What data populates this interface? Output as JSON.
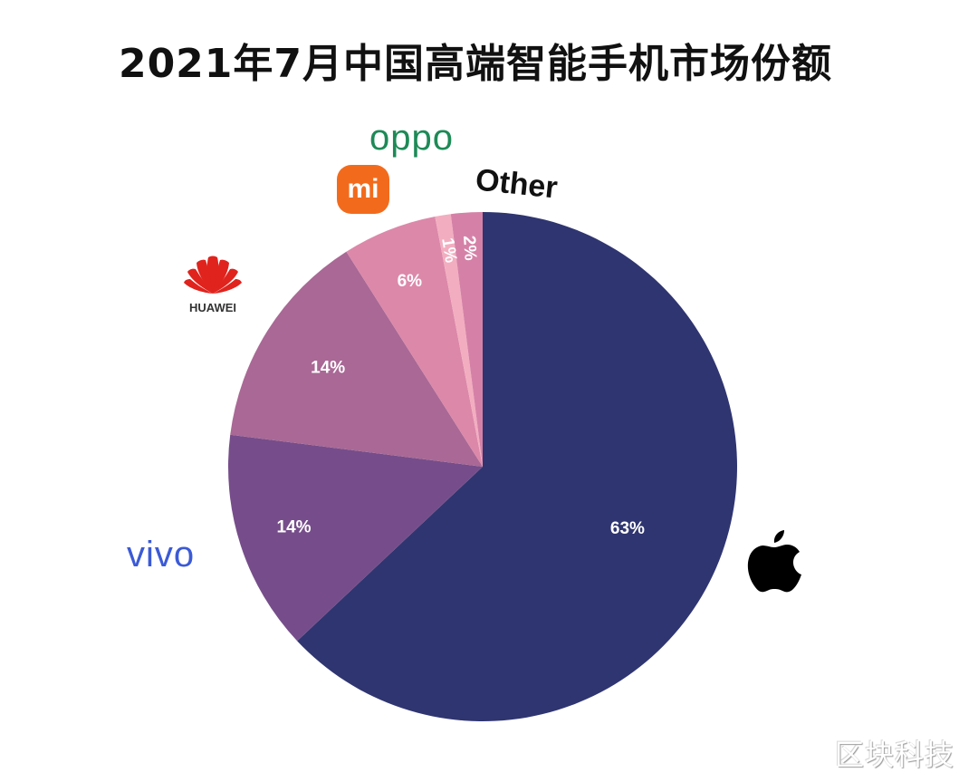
{
  "title": "2021年7月中国高端智能手机市场份额",
  "watermark": "区块科技",
  "brands": {
    "apple": "apple-logo",
    "vivo": "vivo",
    "huawei": "HUAWEI",
    "xiaomi": "mi",
    "oppo": "oppo",
    "other": "Other"
  },
  "colors": {
    "apple": "#2f3570",
    "vivo": "#764d8a",
    "huawei": "#a96895",
    "xiaomi": "#dc88a9",
    "oppo": "#f2aec0",
    "other": "#d581a7"
  },
  "labels": {
    "apple": "63%",
    "vivo": "14%",
    "huawei": "14%",
    "xiaomi": "6%",
    "oppo": "1%",
    "other": "2%"
  },
  "chart_data": {
    "type": "pie",
    "title": "2021年7月中国高端智能手机市场份额",
    "categories": [
      "Apple",
      "vivo",
      "HUAWEI",
      "Xiaomi (mi)",
      "OPPO",
      "Other"
    ],
    "values": [
      63,
      14,
      14,
      6,
      1,
      2
    ],
    "unit": "%",
    "start_angle": "12 o'clock, clockwise",
    "legend": "brand logos placed around the pie next to each slice"
  }
}
